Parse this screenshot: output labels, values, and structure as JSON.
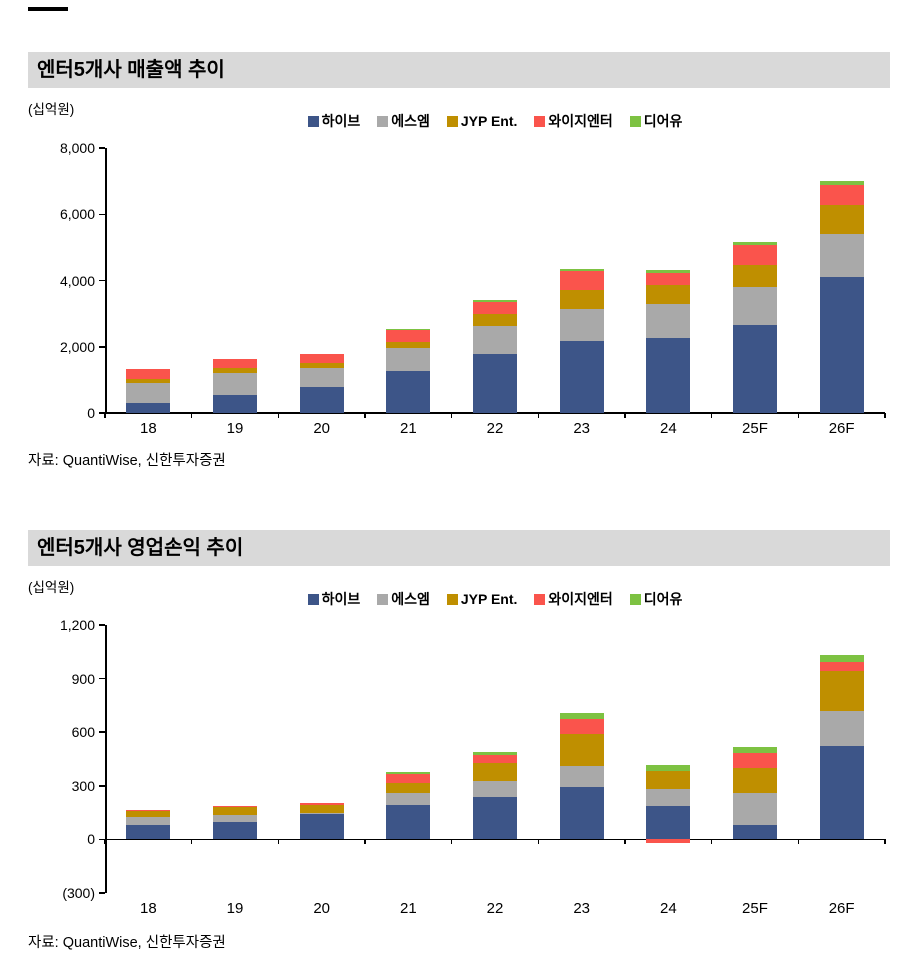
{
  "chart_data": [
    {
      "type": "bar",
      "stacked": true,
      "title": "엔터5개사 매출액 추이",
      "unit": "(십억원)",
      "source": "자료: QuantiWise, 신한투자증권",
      "categories": [
        "18",
        "19",
        "20",
        "21",
        "22",
        "23",
        "24",
        "25F",
        "26F"
      ],
      "series": [
        {
          "name": "하이브",
          "color": "#3d5588",
          "values": [
            300,
            550,
            790,
            1255,
            1780,
            2180,
            2250,
            2650,
            4100
          ]
        },
        {
          "name": "에스엠",
          "color": "#a9a9a9",
          "values": [
            610,
            655,
            580,
            700,
            850,
            960,
            1050,
            1150,
            1300
          ]
        },
        {
          "name": "JYP Ent.",
          "color": "#bf8f00",
          "values": [
            125,
            155,
            145,
            195,
            345,
            565,
            570,
            680,
            870
          ]
        },
        {
          "name": "와이지엔터",
          "color": "#fa544c",
          "values": [
            285,
            265,
            255,
            355,
            390,
            570,
            355,
            600,
            620
          ]
        },
        {
          "name": "디어유",
          "color": "#7dc242",
          "values": [
            0,
            0,
            0,
            40,
            50,
            75,
            80,
            95,
            110
          ]
        }
      ],
      "ylim": [
        0,
        8000
      ],
      "yticks": [
        {
          "label": "8,000",
          "value": 8000
        },
        {
          "label": "6,000",
          "value": 6000
        },
        {
          "label": "4,000",
          "value": 4000
        },
        {
          "label": "2,000",
          "value": 2000
        },
        {
          "label": "0",
          "value": 0
        }
      ],
      "legend_position": "top",
      "grid": false
    },
    {
      "type": "bar",
      "stacked": true,
      "title": "엔터5개사 영업손익 추이",
      "unit": "(십억원)",
      "source": "자료: QuantiWise, 신한투자증권",
      "categories": [
        "18",
        "19",
        "20",
        "21",
        "22",
        "23",
        "24",
        "25F",
        "26F"
      ],
      "series": [
        {
          "name": "하이브",
          "color": "#3d5588",
          "values": [
            80,
            99,
            142,
            190,
            238,
            296,
            185,
            80,
            520
          ]
        },
        {
          "name": "에스엠",
          "color": "#a9a9a9",
          "values": [
            48,
            40,
            7,
            68,
            91,
            114,
            95,
            180,
            200
          ]
        },
        {
          "name": "JYP Ent.",
          "color": "#bf8f00",
          "values": [
            29,
            44,
            44,
            58,
            97,
            179,
            105,
            140,
            220
          ]
        },
        {
          "name": "와이지엔터",
          "color": "#fa544c",
          "values": [
            9,
            5,
            11,
            51,
            47,
            87,
            -20,
            85,
            55
          ]
        },
        {
          "name": "디어유",
          "color": "#7dc242",
          "values": [
            0,
            0,
            0,
            13,
            16,
            29,
            32,
            30,
            35
          ]
        }
      ],
      "ylim": [
        -300,
        1200
      ],
      "yticks": [
        {
          "label": "1,200",
          "value": 1200
        },
        {
          "label": "900",
          "value": 900
        },
        {
          "label": "600",
          "value": 600
        },
        {
          "label": "300",
          "value": 300
        },
        {
          "label": "0",
          "value": 0
        },
        {
          "label": "(300)",
          "value": -300
        }
      ],
      "legend_position": "top",
      "grid": false
    }
  ],
  "style": {
    "title_band_bg": "#d9d9d9",
    "axis_color": "#000000"
  }
}
